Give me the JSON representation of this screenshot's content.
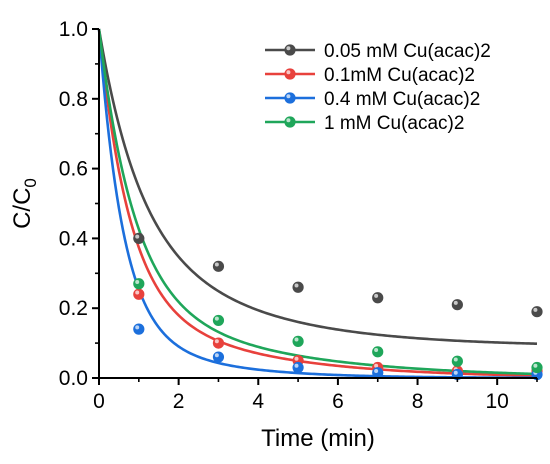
{
  "chart_data": {
    "type": "scatter",
    "title": "",
    "xlabel": "Time (min)",
    "ylabel_main": "C/C",
    "ylabel_sub": "0",
    "xlim": [
      0,
      11
    ],
    "ylim": [
      0,
      1.0
    ],
    "x_ticks": [
      0,
      2,
      4,
      6,
      8,
      10
    ],
    "y_ticks": [
      0.0,
      0.2,
      0.4,
      0.6,
      0.8,
      1.0
    ],
    "x_tick_labels": [
      "0",
      "2",
      "4",
      "6",
      "8",
      "10"
    ],
    "y_tick_labels": [
      "0.0",
      "0.2",
      "0.4",
      "0.6",
      "0.8",
      "1.0"
    ],
    "grid": false,
    "legend_position": "top-right",
    "series": [
      {
        "name": "0.05 mM Cu(acac)2",
        "color": "#4a4a4a",
        "x": [
          0,
          1,
          3,
          5,
          7,
          9,
          11
        ],
        "values": [
          1.0,
          0.4,
          0.32,
          0.26,
          0.23,
          0.21,
          0.19
        ],
        "fit": {
          "k": 1.05,
          "a": 0.52,
          "r": 0.35,
          "c": 0.09
        }
      },
      {
        "name": "0.1mM Cu(acac)2",
        "color": "#e8413c",
        "x": [
          0,
          1,
          3,
          5,
          7,
          9,
          11
        ],
        "values": [
          1.0,
          0.24,
          0.1,
          0.05,
          0.03,
          0.02,
          0.02
        ],
        "fit": {
          "k": 1.35,
          "a": 0.75,
          "r": 0.33,
          "c": 0.0
        }
      },
      {
        "name": "0.4 mM Cu(acac)2",
        "color": "#1c6fdc",
        "x": [
          0,
          1,
          3,
          5,
          7,
          9,
          11
        ],
        "values": [
          1.0,
          0.14,
          0.06,
          0.03,
          0.015,
          0.01,
          0.01
        ],
        "fit": {
          "k": 1.7,
          "a": 0.83,
          "r": 0.5,
          "c": 0.0
        }
      },
      {
        "name": "1 mM Cu(acac)2",
        "color": "#1fa65a",
        "x": [
          0,
          1,
          3,
          5,
          7,
          9,
          11
        ],
        "values": [
          1.0,
          0.27,
          0.165,
          0.105,
          0.075,
          0.048,
          0.03
        ],
        "fit": {
          "k": 1.15,
          "a": 0.75,
          "r": 0.28,
          "c": 0.0
        }
      }
    ]
  }
}
